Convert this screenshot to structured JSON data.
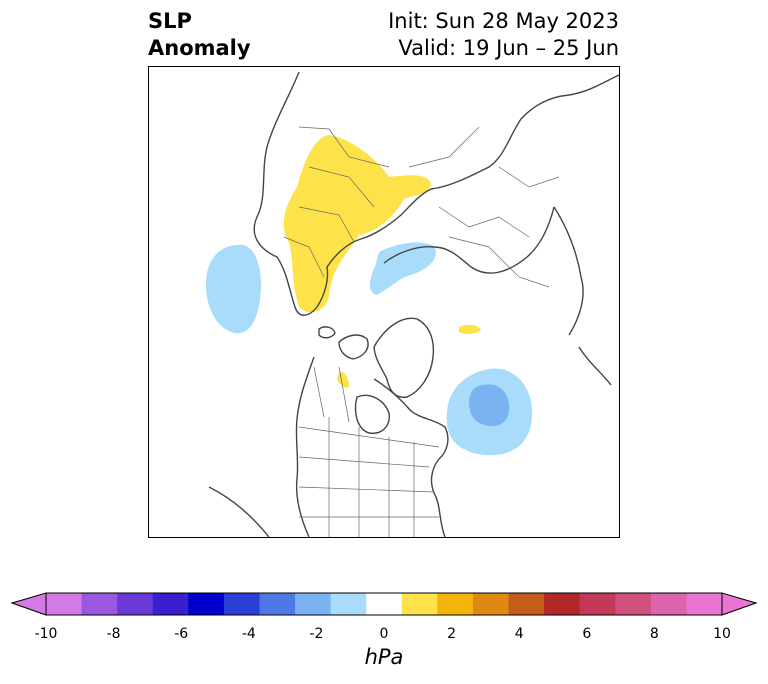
{
  "title": {
    "left_line1": "SLP",
    "left_line2": "Anomaly",
    "init": "Init: Sun 28 May 2023",
    "valid": "Valid: 19 Jun – 25 Jun"
  },
  "map": {
    "projection": "north-polar-stereographic",
    "anomalies": [
      {
        "region": "Scandinavia / Finland / NW Russia",
        "sign": "positive",
        "range_hPa": "1 to 2"
      },
      {
        "region": "Central North Atlantic (west of Europe)",
        "sign": "negative",
        "range_hPa": "-2 to -1"
      },
      {
        "region": "Barents / Kara Sea",
        "sign": "negative",
        "range_hPa": "-2 to -1"
      },
      {
        "region": "Off Newfoundland / NW Atlantic",
        "sign": "negative",
        "range_hPa": "-3 to -1"
      },
      {
        "region": "Western Canada (small)",
        "sign": "positive",
        "range_hPa": "1 to 2"
      },
      {
        "region": "East Siberian Sea (small)",
        "sign": "positive",
        "range_hPa": "1 to 2"
      }
    ]
  },
  "colorbar": {
    "unit": "hPa",
    "min": -10,
    "max": 10,
    "extend": "both",
    "tick_labels": [
      "-10",
      "-8",
      "-6",
      "-4",
      "-2",
      "0",
      "2",
      "4",
      "6",
      "8",
      "10"
    ],
    "colors": [
      "#d47ae6",
      "#9a58e0",
      "#6b3ad6",
      "#3a1fd0",
      "#0000cc",
      "#2a3fd6",
      "#4e78e6",
      "#7ab2f2",
      "#a9dcfb",
      "#ffffff",
      "#fde24a",
      "#f2b40a",
      "#de8a12",
      "#c45c1a",
      "#b02828",
      "#c23a58",
      "#d0507c",
      "#db64ab",
      "#ea74d4"
    ],
    "over_color": "#ea74d4",
    "under_color": "#d47ae6"
  }
}
